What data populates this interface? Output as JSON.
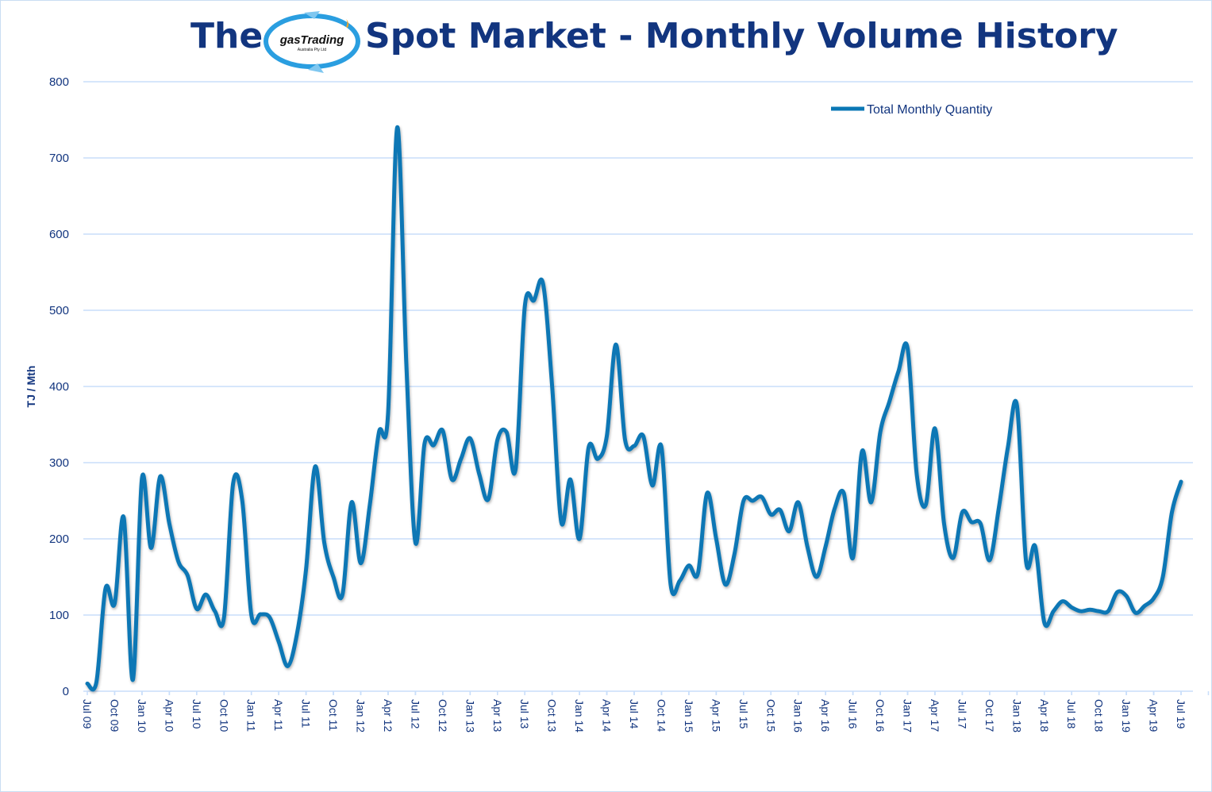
{
  "title": {
    "prefix": "The",
    "main": "Spot Market - Monthly Volume History",
    "logo_text": "gasTrading",
    "logo_sub": "Australia Pty Ltd"
  },
  "colors": {
    "line": "#0a77b5",
    "grid": "#c9defa",
    "text": "#12357f"
  },
  "chart_data": {
    "type": "line",
    "ylabel": "TJ / Mth",
    "xlabel": "",
    "ylim": [
      0,
      800
    ],
    "yticks": [
      "0",
      "100",
      "200",
      "300",
      "400",
      "500",
      "600",
      "700",
      "800"
    ],
    "grid": true,
    "legend": "top-right",
    "xticks": [
      "Jul 09",
      "Oct 09",
      "Jan 10",
      "Apr 10",
      "Jul 10",
      "Oct 10",
      "Jan 11",
      "Apr 11",
      "Jul 11",
      "Oct 11",
      "Jan 12",
      "Apr 12",
      "Jul 12",
      "Oct 12",
      "Jan 13",
      "Apr 13",
      "Jul 13",
      "Oct 13",
      "Jan 14",
      "Apr 14",
      "Jul 14",
      "Oct 14",
      "Jan 15",
      "Apr 15",
      "Jul 15",
      "Oct 15",
      "Jan 16",
      "Apr 16",
      "Jul 16",
      "Oct 16",
      "Jan 17",
      "Apr 17",
      "Jul 17",
      "Oct 17",
      "Jan 18",
      "Apr 18",
      "Jul 18",
      "Oct 18",
      "Jan 19",
      "Apr 19",
      "Jul 19"
    ],
    "x_start": "Jul 09",
    "x_end": "Jul 19",
    "x_step": "month",
    "series": [
      {
        "name": "Total Monthly Quantity",
        "values": [
          10,
          12,
          135,
          115,
          228,
          15,
          280,
          188,
          282,
          220,
          170,
          152,
          108,
          127,
          105,
          97,
          273,
          250,
          100,
          101,
          97,
          65,
          33,
          75,
          160,
          295,
          195,
          150,
          127,
          248,
          168,
          245,
          340,
          365,
          740,
          430,
          195,
          325,
          323,
          342,
          278,
          305,
          332,
          285,
          252,
          330,
          340,
          292,
          505,
          513,
          535,
          400,
          222,
          278,
          200,
          320,
          305,
          335,
          455,
          330,
          322,
          335,
          270,
          320,
          140,
          145,
          165,
          155,
          260,
          200,
          140,
          180,
          250,
          250,
          255,
          232,
          238,
          210,
          248,
          190,
          150,
          190,
          240,
          260,
          175,
          315,
          248,
          340,
          380,
          420,
          450,
          285,
          245,
          345,
          220,
          175,
          235,
          222,
          220,
          172,
          240,
          320,
          375,
          170,
          190,
          90,
          105,
          118,
          110,
          105,
          107,
          105,
          105,
          130,
          125,
          103,
          112,
          122,
          150,
          235,
          275
        ]
      }
    ]
  }
}
